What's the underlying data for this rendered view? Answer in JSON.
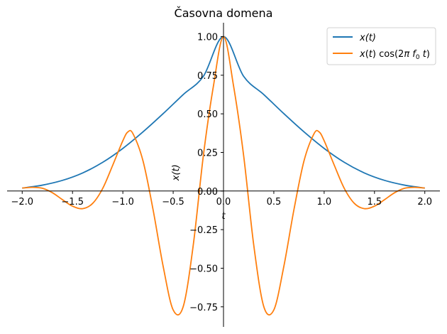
{
  "chart_data": {
    "type": "line",
    "title": "Časovna domena",
    "xlabel": "t",
    "ylabel": "x(t)",
    "xlim": [
      -2.15,
      2.15
    ],
    "ylim": [
      -0.88,
      1.09
    ],
    "xticks": [
      -2.0,
      -1.5,
      -1.0,
      -0.5,
      0.0,
      0.5,
      1.0,
      1.5,
      2.0
    ],
    "xtick_labels": [
      "−2.0",
      "−1.5",
      "−1.0",
      "−0.5",
      "0.0",
      "0.5",
      "1.0",
      "1.5",
      "2.0"
    ],
    "yticks": [
      -0.75,
      -0.5,
      -0.25,
      0.0,
      0.25,
      0.5,
      0.75,
      1.0
    ],
    "ytick_labels": [
      "−0.75",
      "−0.50",
      "−0.25",
      "0.00",
      "0.25",
      "0.50",
      "0.75",
      "1.00"
    ],
    "grid": false,
    "legend_position": "top-right",
    "series": [
      {
        "name": "x(t)",
        "color": "#1f77b4",
        "x": [
          -2.0,
          -1.8,
          -1.6,
          -1.4,
          -1.2,
          -1.0,
          -0.8,
          -0.6,
          -0.4,
          -0.2,
          0.0,
          0.2,
          0.4,
          0.6,
          0.8,
          1.0,
          1.2,
          1.4,
          1.6,
          1.8,
          2.0
        ],
        "y": [
          0.019,
          0.038,
          0.069,
          0.117,
          0.186,
          0.276,
          0.383,
          0.501,
          0.625,
          0.743,
          1.0,
          0.743,
          0.625,
          0.501,
          0.383,
          0.276,
          0.186,
          0.117,
          0.069,
          0.038,
          0.019
        ]
      },
      {
        "name": "x(t) cos(2π f0 t)",
        "color": "#ff7f0e",
        "x": [
          -2.0,
          -1.9,
          -1.8,
          -1.7,
          -1.6,
          -1.5,
          -1.4,
          -1.3,
          -1.2,
          -1.1,
          -1.0,
          -0.95,
          -0.9,
          -0.8,
          -0.7,
          -0.6,
          -0.5,
          -0.4,
          -0.3,
          -0.2,
          -0.1,
          0.0,
          0.1,
          0.2,
          0.3,
          0.4,
          0.5,
          0.6,
          0.7,
          0.8,
          0.9,
          0.95,
          1.0,
          1.1,
          1.2,
          1.3,
          1.4,
          1.5,
          1.6,
          1.7,
          1.8,
          1.9,
          2.0
        ],
        "y": [
          0.019,
          0.024,
          0.018,
          -0.011,
          -0.056,
          -0.098,
          -0.114,
          -0.08,
          0.017,
          0.168,
          0.326,
          0.383,
          0.372,
          0.196,
          -0.12,
          -0.486,
          -0.77,
          -0.748,
          -0.348,
          0.23,
          0.68,
          1.0,
          0.68,
          0.23,
          -0.348,
          -0.748,
          -0.77,
          -0.486,
          -0.12,
          0.196,
          0.372,
          0.383,
          0.326,
          0.168,
          0.017,
          -0.08,
          -0.114,
          -0.098,
          -0.056,
          -0.011,
          0.018,
          0.024,
          0.019
        ]
      }
    ]
  }
}
